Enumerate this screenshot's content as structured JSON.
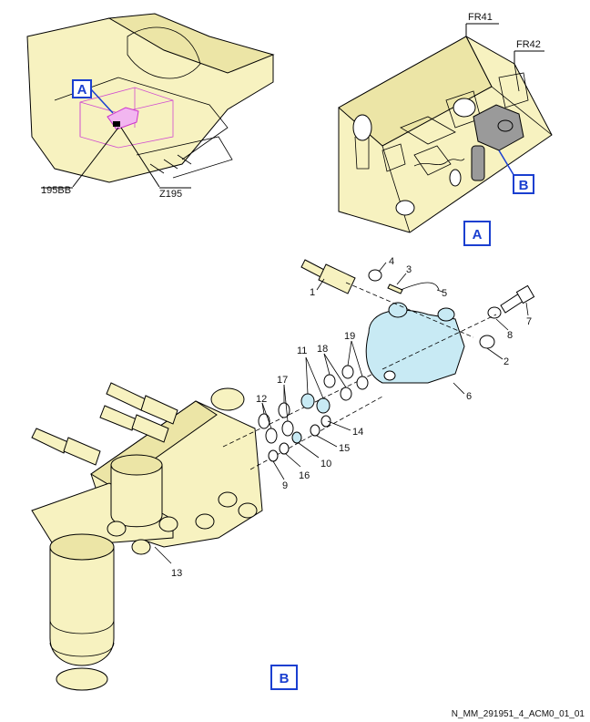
{
  "figure_id": "N_MM_291951_4_ACM0_01_01",
  "views": {
    "locator": {
      "callout_a": "A",
      "label_195bb": "195BB",
      "label_z195": "Z195"
    },
    "view_a": {
      "fr41": "FR41",
      "fr42": "FR42",
      "callout_b": "B",
      "view_label": "A"
    },
    "view_b": {
      "view_label": "B"
    }
  },
  "items": [
    "1",
    "2",
    "3",
    "4",
    "5",
    "6",
    "7",
    "8",
    "9",
    "10",
    "11",
    "12",
    "13",
    "14",
    "15",
    "16",
    "17",
    "18",
    "19"
  ],
  "colors": {
    "callout_blue": "#1a3fd0",
    "housing_yellow": "#f7f2c0",
    "cover_cyan": "#c8eaf4",
    "highlight_magenta": "#f2b6f0",
    "part_gray": "#9a9a9a"
  }
}
